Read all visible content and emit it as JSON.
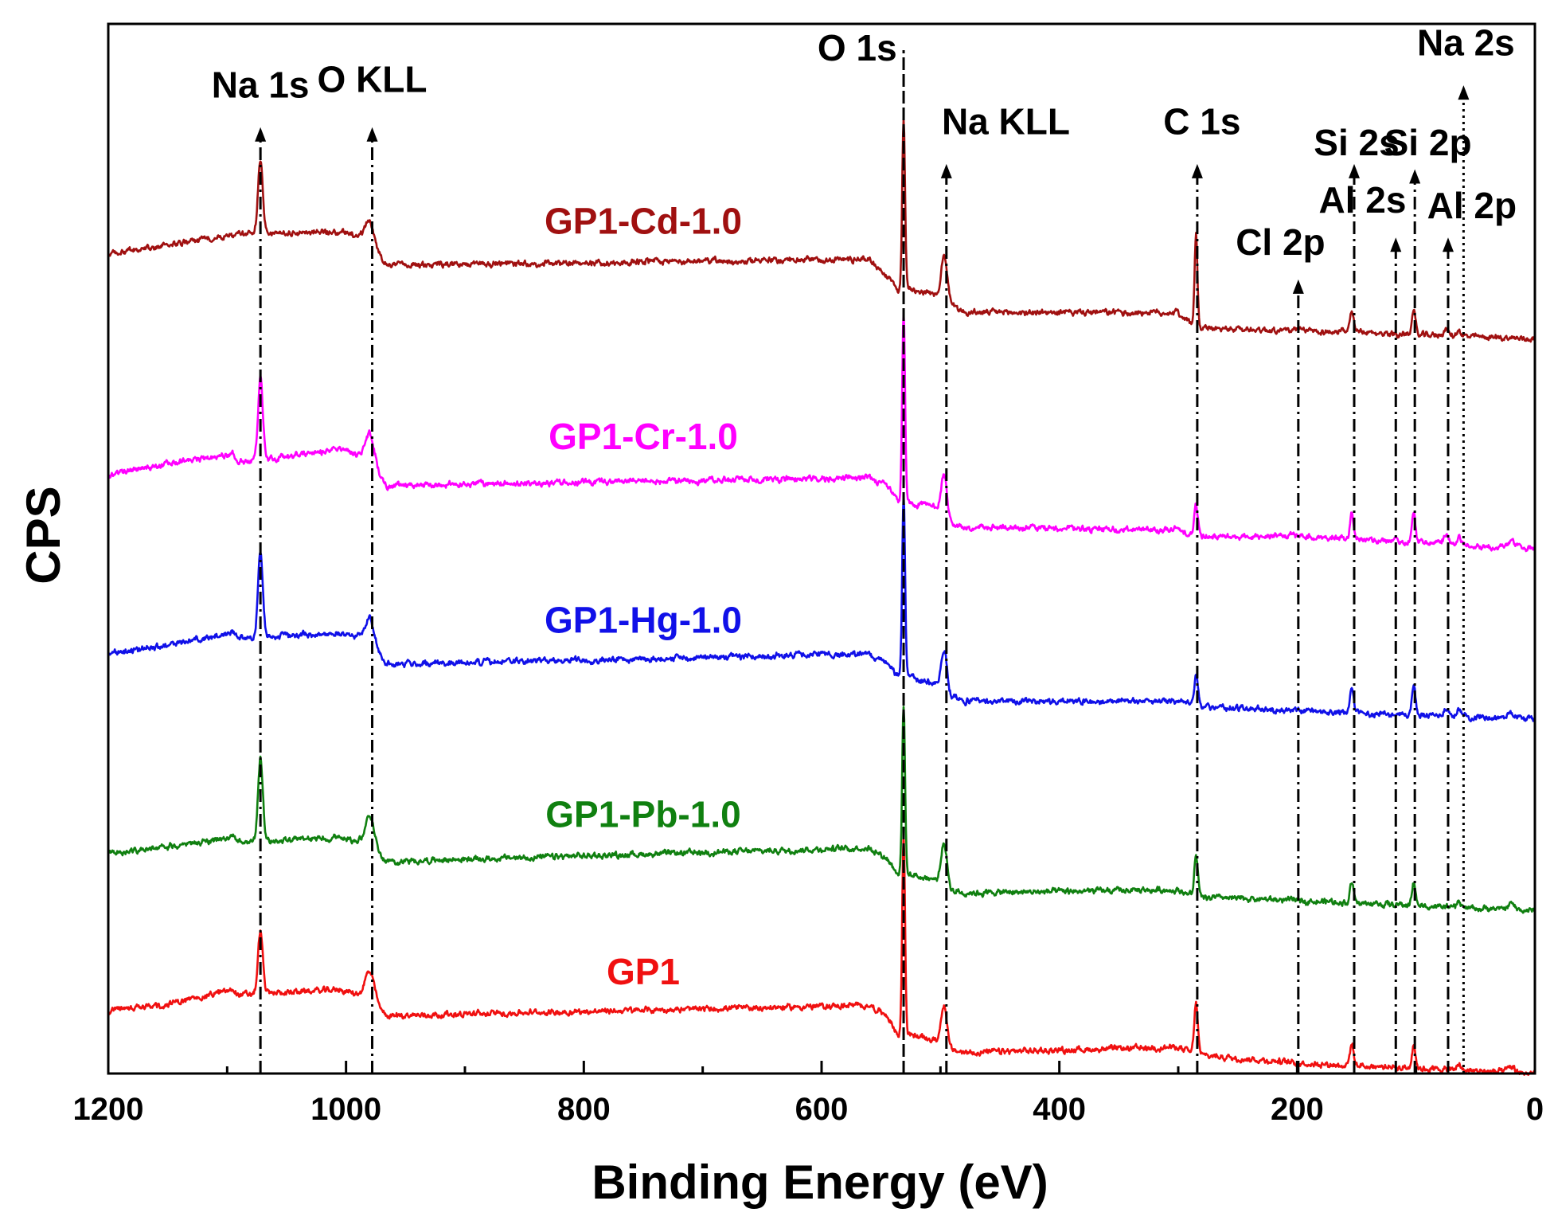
{
  "chart_data": {
    "type": "line",
    "title": "",
    "xlabel": "Binding Energy (eV)",
    "ylabel": "CPS",
    "xlim": [
      1200,
      0
    ],
    "x_reversed": true,
    "ylim": [
      0,
      100
    ],
    "x_ticks": [
      1200,
      1000,
      800,
      600,
      400,
      200,
      0
    ],
    "x_tick_labels": [
      "1200",
      "1000",
      "800",
      "600",
      "400",
      "200",
      "0"
    ],
    "y_ticks_shown": false,
    "grid": false,
    "legend": "inline-labels",
    "series": [
      {
        "name": "GP1-Cd-1.0",
        "color": "#a01010",
        "offset": 78,
        "baseline": [
          [
            1200,
            0
          ],
          [
            1090,
            2
          ],
          [
            1000,
            2.2
          ],
          [
            985,
            1.5
          ],
          [
            965,
            -1
          ],
          [
            560,
            -0.4
          ],
          [
            545,
            -2
          ],
          [
            535,
            -3.5
          ],
          [
            529,
            -3
          ],
          [
            500,
            -4
          ],
          [
            492,
            -4.5
          ],
          [
            480,
            -5.5
          ],
          [
            300,
            -5.5
          ],
          [
            285,
            -7
          ],
          [
            200,
            -7.2
          ],
          [
            0,
            -8
          ]
        ],
        "peaks": [
          [
            1072,
            7,
            2
          ],
          [
            980,
            2.2,
            4
          ],
          [
            531,
            16,
            1.2
          ],
          [
            497,
            4,
            2.5
          ],
          [
            285,
            9,
            1.2
          ],
          [
            154,
            2.2,
            1.5
          ],
          [
            102,
            2.3,
            1.5
          ],
          [
            75,
            0.6,
            2
          ],
          [
            64,
            0.6,
            1.5
          ]
        ]
      },
      {
        "name": "GP1-Cr-1.0",
        "color": "#ff00ff",
        "offset": 57,
        "baseline": [
          [
            1200,
            0
          ],
          [
            1150,
            1.2
          ],
          [
            1095,
            2
          ],
          [
            1090,
            1.2
          ],
          [
            1000,
            2.5
          ],
          [
            985,
            1.5
          ],
          [
            965,
            -1
          ],
          [
            560,
            -0.2
          ],
          [
            545,
            -1
          ],
          [
            535,
            -2.6
          ],
          [
            529,
            -2.5
          ],
          [
            505,
            -3
          ],
          [
            492,
            -4.5
          ],
          [
            480,
            -5
          ],
          [
            300,
            -5.2
          ],
          [
            285,
            -5.8
          ],
          [
            200,
            -5.8
          ],
          [
            0,
            -7
          ]
        ],
        "peaks": [
          [
            1072,
            8,
            2
          ],
          [
            980,
            3,
            4
          ],
          [
            531,
            18,
            1.2
          ],
          [
            497,
            4,
            2.5
          ],
          [
            285,
            3,
            1.5
          ],
          [
            154,
            2.5,
            1.5
          ],
          [
            102,
            3,
            1.5
          ],
          [
            75,
            0.8,
            2
          ],
          [
            64,
            0.8,
            1.5
          ],
          [
            20,
            0.6,
            3
          ]
        ]
      },
      {
        "name": "GP1-Hg-1.0",
        "color": "#1010e8",
        "offset": 40,
        "baseline": [
          [
            1200,
            0
          ],
          [
            1150,
            0.8
          ],
          [
            1095,
            2
          ],
          [
            1090,
            1.5
          ],
          [
            1005,
            2
          ],
          [
            990,
            1.5
          ],
          [
            965,
            -1
          ],
          [
            560,
            0
          ],
          [
            545,
            -1
          ],
          [
            535,
            -2.2
          ],
          [
            529,
            -2
          ],
          [
            505,
            -3
          ],
          [
            492,
            -4
          ],
          [
            480,
            -4.5
          ],
          [
            300,
            -4.5
          ],
          [
            285,
            -5
          ],
          [
            200,
            -5.5
          ],
          [
            0,
            -6.2
          ]
        ],
        "peaks": [
          [
            1072,
            8,
            2
          ],
          [
            980,
            3,
            4
          ],
          [
            531,
            17,
            1.2
          ],
          [
            497,
            4,
            2.5
          ],
          [
            285,
            3,
            1.5
          ],
          [
            154,
            2.5,
            1.5
          ],
          [
            102,
            2.8,
            1.5
          ],
          [
            75,
            0.8,
            2
          ],
          [
            64,
            0.8,
            1.5
          ],
          [
            20,
            0.6,
            3
          ]
        ]
      },
      {
        "name": "GP1-Pb-1.0",
        "color": "#108010",
        "offset": 21,
        "baseline": [
          [
            1200,
            0
          ],
          [
            1150,
            0.6
          ],
          [
            1095,
            1.5
          ],
          [
            1090,
            1
          ],
          [
            1005,
            1.5
          ],
          [
            990,
            1.2
          ],
          [
            965,
            -0.8
          ],
          [
            560,
            0.5
          ],
          [
            545,
            -0.5
          ],
          [
            535,
            -2
          ],
          [
            529,
            -2
          ],
          [
            505,
            -2.5
          ],
          [
            492,
            -3.5
          ],
          [
            480,
            -3.8
          ],
          [
            300,
            -3.5
          ],
          [
            285,
            -4.2
          ],
          [
            200,
            -4.5
          ],
          [
            0,
            -5.5
          ]
        ],
        "peaks": [
          [
            1072,
            8,
            2
          ],
          [
            980,
            3,
            4
          ],
          [
            531,
            16,
            1.2
          ],
          [
            497,
            4,
            2.5
          ],
          [
            285,
            4,
            1.5
          ],
          [
            154,
            2,
            1.5
          ],
          [
            102,
            2.2,
            1.5
          ],
          [
            64,
            0.6,
            1.5
          ],
          [
            20,
            0.6,
            3
          ]
        ]
      },
      {
        "name": "GP1",
        "color": "#f01010",
        "offset": 6,
        "baseline": [
          [
            1200,
            0
          ],
          [
            1150,
            0.6
          ],
          [
            1095,
            2
          ],
          [
            1090,
            1.5
          ],
          [
            1005,
            2
          ],
          [
            990,
            1.5
          ],
          [
            965,
            -0.5
          ],
          [
            560,
            0.5
          ],
          [
            545,
            -0.5
          ],
          [
            535,
            -2.5
          ],
          [
            529,
            -2.2
          ],
          [
            505,
            -2.8
          ],
          [
            492,
            -3.8
          ],
          [
            480,
            -4
          ],
          [
            300,
            -3.5
          ],
          [
            285,
            -4.2
          ],
          [
            200,
            -5
          ],
          [
            0,
            -6
          ]
        ],
        "peaks": [
          [
            1072,
            6,
            2
          ],
          [
            980,
            3,
            4
          ],
          [
            531,
            19,
            1.2
          ],
          [
            497,
            4,
            2.5
          ],
          [
            285,
            5,
            1.5
          ],
          [
            154,
            2,
            1.5
          ],
          [
            102,
            2.3,
            1.5
          ],
          [
            64,
            0.6,
            1.5
          ],
          [
            20,
            0.5,
            3
          ]
        ]
      }
    ],
    "series_labels": [
      {
        "text": "GP1-Cd-1.0",
        "x": 750,
        "y": 80,
        "color": "#a01010"
      },
      {
        "text": "GP1-Cr-1.0",
        "x": 750,
        "y": 59.5,
        "color": "#ff00ff"
      },
      {
        "text": "GP1-Hg-1.0",
        "x": 750,
        "y": 42,
        "color": "#1010e8"
      },
      {
        "text": "GP1-Pb-1.0",
        "x": 750,
        "y": 23.5,
        "color": "#108010"
      },
      {
        "text": "GP1",
        "x": 750,
        "y": 8.5,
        "color": "#f01010"
      }
    ],
    "annotations": [
      {
        "text": "Na 1s",
        "x": 1072,
        "y_top": 90,
        "label_x": 1072,
        "label_y": 93,
        "style": "dash-dot",
        "arrow": true
      },
      {
        "text": "O KLL",
        "x": 978,
        "y_top": 90,
        "label_x": 978,
        "label_y": 93.5,
        "style": "dash-dot",
        "arrow": true
      },
      {
        "text": "O 1s",
        "x": 531,
        "y_top": 97.5,
        "label_x": 570,
        "label_y": 96.5,
        "style": "dashed",
        "arrow": false
      },
      {
        "text": "Na KLL",
        "x": 495,
        "y_top": 86.5,
        "label_x": 445,
        "label_y": 89.5,
        "style": "dash-dot",
        "arrow": true
      },
      {
        "text": "C 1s",
        "x": 284,
        "y_top": 86.5,
        "label_x": 280,
        "label_y": 89.5,
        "style": "dash-dot",
        "arrow": true
      },
      {
        "text": "Si 2s",
        "x": 152,
        "y_top": 86.5,
        "label_x": 150,
        "label_y": 87.5,
        "style": "dash-dot",
        "arrow": true
      },
      {
        "text": "Si 2p",
        "x": 101,
        "y_top": 86,
        "label_x": 90,
        "label_y": 87.5,
        "style": "dash-dot",
        "arrow": true
      },
      {
        "text": "Al 2s",
        "x": 117,
        "y_top": 79.5,
        "label_x": 145,
        "label_y": 82,
        "style": "dash-dot",
        "arrow": true
      },
      {
        "text": "Al 2p",
        "x": 73,
        "y_top": 79.5,
        "label_x": 53,
        "label_y": 81.5,
        "style": "dash-dot",
        "arrow": true
      },
      {
        "text": "Cl 2p",
        "x": 199,
        "y_top": 75.5,
        "label_x": 214,
        "label_y": 78,
        "style": "dash-dot",
        "arrow": true
      },
      {
        "text": "Na 2s",
        "x": 60,
        "y_top": 94,
        "label_x": 58,
        "label_y": 97,
        "style": "dotted",
        "arrow": true
      }
    ]
  }
}
